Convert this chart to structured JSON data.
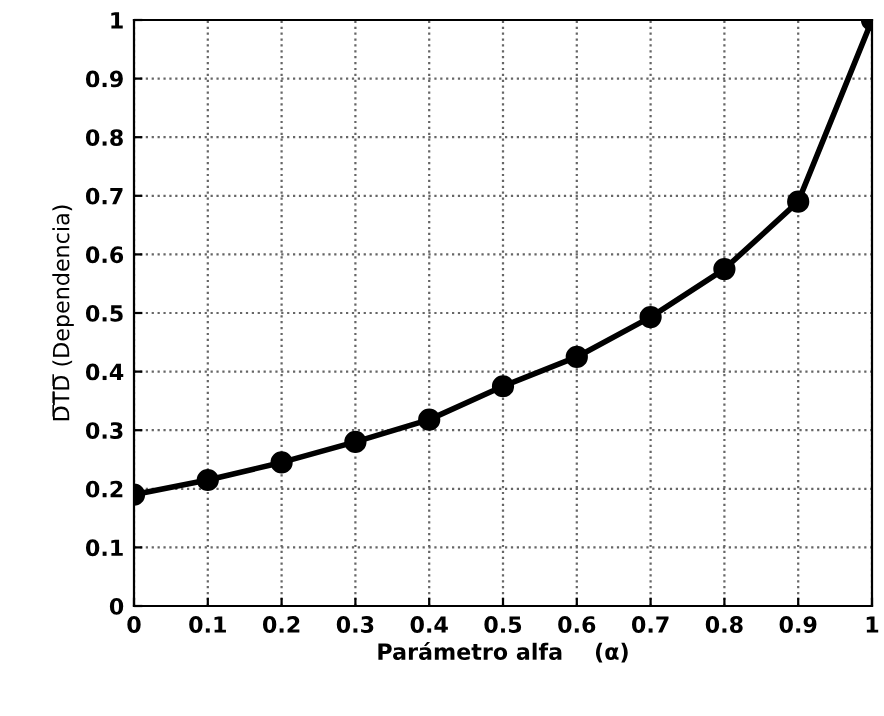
{
  "chart_data": {
    "type": "line",
    "xlabel": "Parámetro alfa    (α)",
    "ylabel": "D̅T̅D̅ (Dependencia)",
    "x": [
      0,
      0.1,
      0.2,
      0.3,
      0.4,
      0.5,
      0.6,
      0.7,
      0.8,
      0.9,
      1
    ],
    "series": [
      {
        "color": "#000000",
        "values": [
          0.19,
          0.215,
          0.245,
          0.28,
          0.318,
          0.375,
          0.425,
          0.493,
          0.575,
          0.69,
          1.0
        ]
      }
    ],
    "xlim": [
      0,
      1
    ],
    "ylim": [
      0,
      1
    ],
    "xticks": [
      0,
      0.1,
      0.2,
      0.3,
      0.4,
      0.5,
      0.6,
      0.7,
      0.8,
      0.9,
      1
    ],
    "yticks": [
      0,
      0.1,
      0.2,
      0.3,
      0.4,
      0.5,
      0.6,
      0.7,
      0.8,
      0.9,
      1
    ],
    "grid": true,
    "marker": "circle",
    "line_style": "solid",
    "legend": false
  }
}
